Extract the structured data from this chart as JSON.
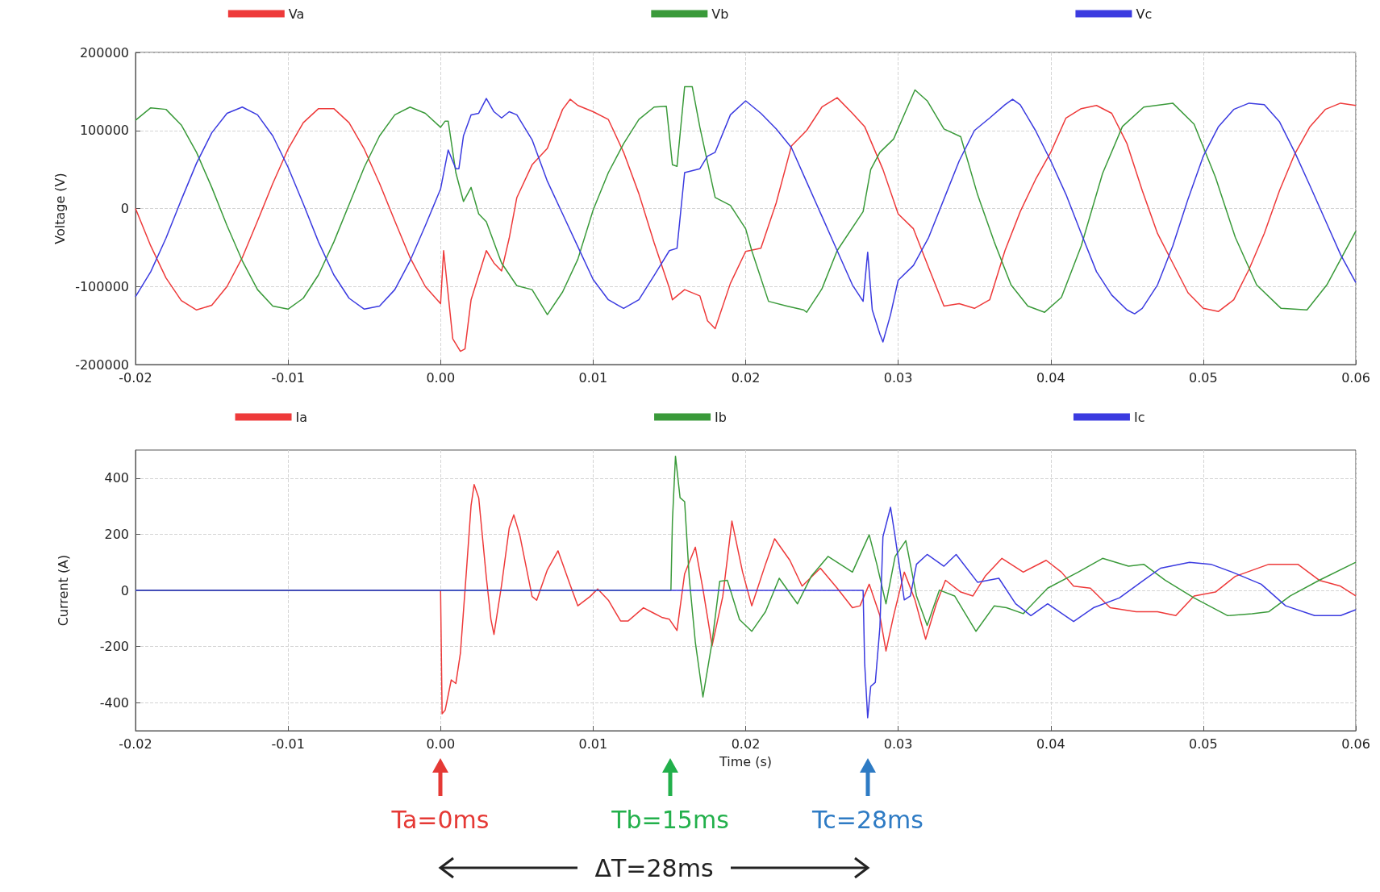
{
  "chart_data": [
    {
      "type": "line",
      "ylabel": "Voltage (V)",
      "legend": "top",
      "grid": true,
      "marker": "none",
      "xlim": [
        -0.02,
        0.06
      ],
      "xticks": [
        -0.02,
        -0.01,
        {
          "value": 0,
          "label": "0.00"
        },
        0.01,
        0.02,
        0.03,
        0.04,
        0.05,
        0.06
      ],
      "ylim": [
        -200000,
        200000
      ],
      "yticks": [
        -200000,
        -100000,
        0,
        100000,
        200000
      ],
      "series": [
        {
          "name": "Va",
          "color": "#ee3a3a",
          "x": [
            -0.02,
            -0.019,
            -0.018,
            -0.017,
            -0.016,
            -0.015,
            -0.014,
            -0.013,
            -0.012,
            -0.011,
            -0.01,
            -0.009,
            -0.008,
            -0.007,
            -0.006,
            -0.005,
            -0.004,
            -0.003,
            -0.002,
            -0.001,
            0,
            0.0002,
            0.0008,
            0.0013,
            0.0016,
            0.002,
            0.003,
            0.0035,
            0.004,
            0.0045,
            0.005,
            0.006,
            0.007,
            0.008,
            0.0085,
            0.009,
            0.01,
            0.011,
            0.012,
            0.013,
            0.014,
            0.015,
            0.0152,
            0.016,
            0.017,
            0.0175,
            0.018,
            0.019,
            0.02,
            0.021,
            0.022,
            0.023,
            0.024,
            0.025,
            0.026,
            0.027,
            0.0278,
            0.029,
            0.03,
            0.031,
            0.032,
            0.033,
            0.034,
            0.035,
            0.036,
            0.037,
            0.038,
            0.039,
            0.04,
            0.041,
            0.042,
            0.043,
            0.044,
            0.045,
            0.046,
            0.047,
            0.048,
            0.049,
            0.05,
            0.051,
            0.052,
            0.053,
            0.054,
            0.055,
            0.056,
            0.057,
            0.058,
            0.059,
            0.06
          ],
          "values": [
            0,
            -48000,
            -89000,
            -118000,
            -130000,
            -124000,
            -100000,
            -63000,
            -16000,
            32000,
            76000,
            110000,
            128000,
            128000,
            110000,
            76000,
            32000,
            -16000,
            -63000,
            -100000,
            -122000,
            -54000,
            -167000,
            -183000,
            -180000,
            -117000,
            -54000,
            -70000,
            -80000,
            -38000,
            14000,
            56000,
            77000,
            127000,
            140000,
            132000,
            124000,
            114000,
            72000,
            19000,
            -44000,
            -102000,
            -117000,
            -104000,
            -112000,
            -144000,
            -154000,
            -96000,
            -55000,
            -51000,
            7000,
            80000,
            100000,
            130000,
            142000,
            122000,
            105000,
            50000,
            -7000,
            -26000,
            -76000,
            -125000,
            -122000,
            -128000,
            -117000,
            -54000,
            -4000,
            37000,
            72000,
            116000,
            128000,
            132000,
            122000,
            83000,
            23000,
            -32000,
            -70000,
            -108000,
            -128000,
            -132000,
            -117000,
            -78000,
            -32000,
            23000,
            70000,
            105000,
            127000,
            135000,
            132000
          ]
        },
        {
          "name": "Vb",
          "color": "#3a9a3a",
          "x": [
            -0.02,
            -0.019,
            -0.018,
            -0.017,
            -0.016,
            -0.015,
            -0.014,
            -0.013,
            -0.012,
            -0.011,
            -0.01,
            -0.009,
            -0.008,
            -0.007,
            -0.006,
            -0.005,
            -0.004,
            -0.003,
            -0.002,
            -0.001,
            0,
            0.0003,
            0.0005,
            0.001,
            0.0015,
            0.002,
            0.0025,
            0.003,
            0.004,
            0.005,
            0.006,
            0.007,
            0.008,
            0.009,
            0.01,
            0.011,
            0.012,
            0.013,
            0.014,
            0.0148,
            0.0152,
            0.0155,
            0.016,
            0.0165,
            0.017,
            0.018,
            0.019,
            0.02,
            0.0204,
            0.0215,
            0.0227,
            0.0238,
            0.024,
            0.025,
            0.026,
            0.0277,
            0.0282,
            0.0288,
            0.0297,
            0.0303,
            0.0311,
            0.0319,
            0.033,
            0.0341,
            0.0352,
            0.0363,
            0.0374,
            0.0385,
            0.0396,
            0.0407,
            0.042,
            0.0434,
            0.0447,
            0.0461,
            0.048,
            0.0494,
            0.0508,
            0.0521,
            0.0535,
            0.0551,
            0.0568,
            0.0581,
            0.06
          ],
          "values": [
            113000,
            129000,
            127000,
            107000,
            72000,
            27000,
            -22000,
            -67000,
            -104000,
            -125000,
            -129000,
            -115000,
            -85000,
            -43000,
            5000,
            53000,
            93000,
            120000,
            130000,
            122000,
            104000,
            112000,
            112000,
            46000,
            9000,
            27000,
            -7000,
            -17000,
            -70000,
            -99000,
            -104000,
            -136000,
            -107000,
            -65000,
            -2000,
            46000,
            83000,
            114000,
            130000,
            131000,
            56000,
            54000,
            156000,
            156000,
            104000,
            14000,
            4000,
            -26000,
            -54000,
            -119000,
            -125000,
            -130000,
            -133000,
            -103000,
            -54000,
            -4000,
            50000,
            72000,
            89000,
            116000,
            152000,
            138000,
            102000,
            92000,
            18000,
            -43000,
            -98000,
            -125000,
            -133000,
            -114000,
            -48000,
            45000,
            105000,
            130000,
            135000,
            108000,
            40000,
            -37000,
            -98000,
            -128000,
            -130000,
            -98000,
            -29000
          ]
        },
        {
          "name": "Vc",
          "color": "#3b3be0",
          "x": [
            -0.02,
            -0.019,
            -0.018,
            -0.017,
            -0.016,
            -0.015,
            -0.014,
            -0.013,
            -0.012,
            -0.011,
            -0.01,
            -0.009,
            -0.008,
            -0.007,
            -0.006,
            -0.005,
            -0.004,
            -0.003,
            -0.002,
            -0.001,
            0,
            0.0005,
            0.001,
            0.0012,
            0.0015,
            0.002,
            0.0025,
            0.003,
            0.0035,
            0.004,
            0.0045,
            0.005,
            0.006,
            0.007,
            0.008,
            0.009,
            0.01,
            0.011,
            0.012,
            0.013,
            0.014,
            0.015,
            0.0155,
            0.016,
            0.017,
            0.0175,
            0.018,
            0.019,
            0.02,
            0.021,
            0.022,
            0.023,
            0.024,
            0.025,
            0.026,
            0.027,
            0.0277,
            0.028,
            0.0283,
            0.0288,
            0.029,
            0.0295,
            0.03,
            0.031,
            0.032,
            0.033,
            0.034,
            0.035,
            0.036,
            0.037,
            0.0375,
            0.038,
            0.039,
            0.04,
            0.041,
            0.042,
            0.043,
            0.044,
            0.045,
            0.0455,
            0.046,
            0.047,
            0.048,
            0.049,
            0.05,
            0.051,
            0.052,
            0.053,
            0.054,
            0.055,
            0.056,
            0.057,
            0.058,
            0.059,
            0.06
          ],
          "values": [
            -113000,
            -81000,
            -38000,
            11000,
            58000,
            97000,
            122000,
            130000,
            120000,
            93000,
            53000,
            6000,
            -43000,
            -85000,
            -115000,
            -129000,
            -125000,
            -104000,
            -67000,
            -22000,
            25000,
            75000,
            51000,
            51000,
            93000,
            120000,
            122000,
            141000,
            124000,
            116000,
            124000,
            120000,
            88000,
            35000,
            -7000,
            -49000,
            -91000,
            -117000,
            -128000,
            -117000,
            -86000,
            -54000,
            -51000,
            46000,
            51000,
            67000,
            72000,
            120000,
            138000,
            122000,
            102000,
            78000,
            34000,
            -10000,
            -54000,
            -98000,
            -119000,
            -56000,
            -130000,
            -161000,
            -171000,
            -136000,
            -92000,
            -73000,
            -37000,
            12000,
            61000,
            100000,
            116000,
            133000,
            140000,
            133000,
            100000,
            61000,
            18000,
            -32000,
            -81000,
            -111000,
            -130000,
            -135000,
            -128000,
            -98000,
            -48000,
            12000,
            67000,
            105000,
            127000,
            135000,
            133000,
            111000,
            72000,
            29000,
            -15000,
            -59000,
            -95000
          ]
        }
      ]
    },
    {
      "type": "line",
      "xlabel": "Time (s)",
      "ylabel": "Current (A)",
      "legend": "top",
      "grid": true,
      "marker": "none",
      "xlim": [
        -0.02,
        0.06
      ],
      "xticks": [
        -0.02,
        -0.01,
        {
          "value": 0,
          "label": "0.00"
        },
        0.01,
        0.02,
        0.03,
        0.04,
        0.05,
        0.06
      ],
      "ylim": [
        -500,
        500
      ],
      "yticks": [
        -400,
        -200,
        0,
        200,
        400
      ],
      "series": [
        {
          "name": "Ia",
          "color": "#ee3a3a",
          "x": [
            -0.02,
            0,
            0.0001,
            0.0003,
            0.0007,
            0.001,
            0.0013,
            0.0017,
            0.002,
            0.0022,
            0.0025,
            0.003,
            0.0033,
            0.0035,
            0.004,
            0.0045,
            0.0048,
            0.0052,
            0.006,
            0.0063,
            0.007,
            0.0077,
            0.0085,
            0.009,
            0.0098,
            0.0103,
            0.011,
            0.0118,
            0.0123,
            0.0133,
            0.014,
            0.0145,
            0.015,
            0.0155,
            0.016,
            0.0167,
            0.0172,
            0.0178,
            0.0185,
            0.0191,
            0.0198,
            0.0204,
            0.0213,
            0.0219,
            0.0229,
            0.0237,
            0.0249,
            0.026,
            0.027,
            0.0275,
            0.0281,
            0.0288,
            0.0292,
            0.0297,
            0.0304,
            0.0311,
            0.0318,
            0.0325,
            0.0331,
            0.0341,
            0.0349,
            0.0357,
            0.0368,
            0.0382,
            0.0397,
            0.0407,
            0.0415,
            0.0426,
            0.0439,
            0.0456,
            0.047,
            0.0482,
            0.0494,
            0.0508,
            0.0521,
            0.0543,
            0.0562,
            0.0576,
            0.059,
            0.06
          ],
          "values": [
            0,
            0,
            -440,
            -427,
            -319,
            -332,
            -224,
            73,
            303,
            377,
            330,
            46,
            -103,
            -157,
            19,
            222,
            269,
            195,
            -22,
            -35,
            73,
            141,
            19,
            -55,
            -22,
            5,
            -35,
            -109,
            -109,
            -62,
            -82,
            -96,
            -103,
            -143,
            59,
            154,
            5,
            -197,
            -22,
            247,
            65,
            -55,
            93,
            184,
            107,
            15,
            79,
            8,
            -62,
            -55,
            22,
            -90,
            -216,
            -90,
            65,
            -34,
            -174,
            -48,
            36,
            -6,
            -20,
            50,
            114,
            65,
            107,
            65,
            15,
            8,
            -62,
            -76,
            -76,
            -90,
            -20,
            -6,
            50,
            93,
            93,
            36,
            15,
            -20
          ]
        },
        {
          "name": "Ib",
          "color": "#3a9a3a",
          "x": [
            -0.02,
            0.0151,
            0.0152,
            0.0154,
            0.0157,
            0.016,
            0.0163,
            0.0167,
            0.0172,
            0.0178,
            0.0183,
            0.0188,
            0.0196,
            0.0204,
            0.0213,
            0.0222,
            0.0234,
            0.0243,
            0.0254,
            0.027,
            0.0281,
            0.0286,
            0.0292,
            0.0298,
            0.0305,
            0.0312,
            0.0319,
            0.0327,
            0.0337,
            0.0351,
            0.0363,
            0.0371,
            0.0382,
            0.0398,
            0.0418,
            0.0434,
            0.0451,
            0.0461,
            0.0475,
            0.0494,
            0.0516,
            0.0532,
            0.0543,
            0.0557,
            0.0576,
            0.06
          ],
          "values": [
            0,
            0,
            249,
            478,
            330,
            316,
            46,
            -184,
            -380,
            -184,
            32,
            36,
            -104,
            -146,
            -76,
            43,
            -48,
            50,
            121,
            65,
            198,
            93,
            -48,
            121,
            177,
            -20,
            -125,
            1,
            -20,
            -146,
            -55,
            -62,
            -83,
            8,
            65,
            114,
            86,
            93,
            36,
            -27,
            -90,
            -83,
            -76,
            -20,
            36,
            100
          ]
        },
        {
          "name": "Ic",
          "color": "#3b3be0",
          "x": [
            -0.02,
            0.0277,
            0.0278,
            0.028,
            0.0282,
            0.0285,
            0.0288,
            0.029,
            0.0295,
            0.0298,
            0.0304,
            0.0308,
            0.0312,
            0.0319,
            0.033,
            0.0338,
            0.0352,
            0.0366,
            0.0377,
            0.0387,
            0.0398,
            0.0415,
            0.0428,
            0.0445,
            0.0461,
            0.0472,
            0.0491,
            0.0505,
            0.0519,
            0.0538,
            0.0554,
            0.0573,
            0.059,
            0.06
          ],
          "values": [
            0,
            0,
            -258,
            -454,
            -342,
            -328,
            -132,
            191,
            296,
            191,
            -34,
            -20,
            93,
            128,
            86,
            128,
            29,
            43,
            -48,
            -90,
            -48,
            -111,
            -62,
            -27,
            36,
            79,
            100,
            93,
            65,
            22,
            -55,
            -90,
            -90,
            -69
          ]
        }
      ],
      "annotations": [
        "Ta=0ms",
        "Tb=15ms",
        "Tc=28ms",
        "ΔT=28ms"
      ]
    }
  ]
}
